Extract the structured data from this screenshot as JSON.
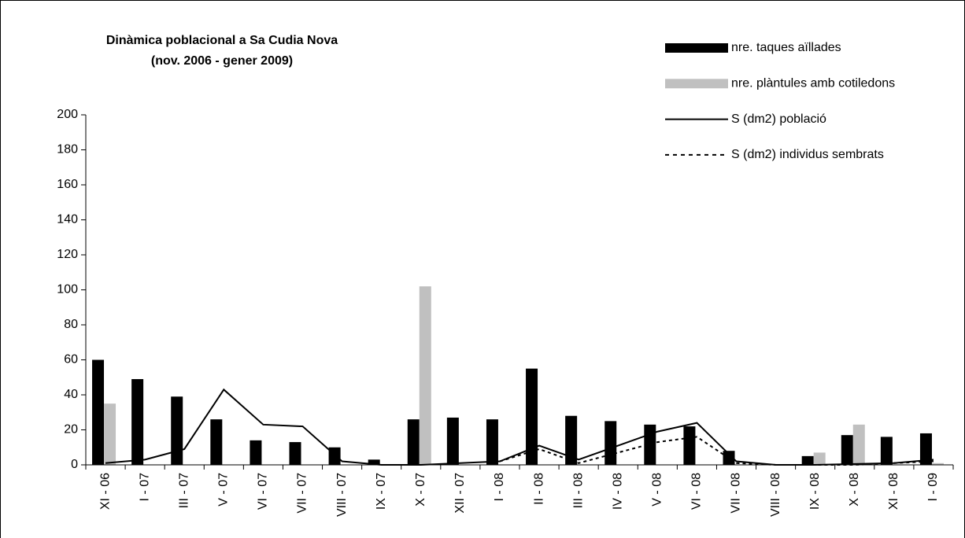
{
  "chart_data": {
    "type": "bar",
    "title": "Dinàmica poblacional a Sa Cudia Nova",
    "subtitle": "(nov. 2006 - gener 2009)",
    "categories": [
      "XI - 06",
      "I - 07",
      "III - 07",
      "V - 07",
      "VI - 07",
      "VII - 07",
      "VIII - 07",
      "IX - 07",
      "X - 07",
      "XII - 07",
      "I - 08",
      "II - 08",
      "III - 08",
      "IV - 08",
      "V - 08",
      "VI - 08",
      "VII - 08",
      "VIII - 08",
      "IX - 08",
      "X - 08",
      "XI - 08",
      "I - 09"
    ],
    "series": [
      {
        "name": "nre. taques aïllades",
        "type": "bar",
        "color": "#000000",
        "values": [
          60,
          49,
          39,
          26,
          14,
          13,
          10,
          3,
          26,
          27,
          26,
          55,
          28,
          25,
          23,
          22,
          8,
          0,
          5,
          17,
          16,
          18
        ]
      },
      {
        "name": "nre. plàntules amb cotiledons",
        "type": "bar",
        "color": "#c0c0c0",
        "values": [
          35,
          0,
          0,
          0,
          0,
          0,
          0,
          0,
          102,
          0,
          0,
          0,
          0,
          0,
          0,
          0,
          0,
          0,
          7,
          23,
          0,
          1
        ]
      },
      {
        "name": "S (dm2) població",
        "type": "line",
        "dashed": false,
        "color": "#000000",
        "values": [
          1,
          3,
          9,
          43,
          23,
          22,
          2,
          0,
          0,
          1,
          2,
          11,
          3,
          11,
          19,
          24,
          2,
          0,
          0,
          0.5,
          1,
          3
        ]
      },
      {
        "name": "S (dm2) individus sembrats",
        "type": "line",
        "dashed": true,
        "color": "#000000",
        "values": [
          null,
          null,
          null,
          null,
          null,
          null,
          null,
          null,
          null,
          null,
          2,
          9,
          1,
          7,
          13,
          16,
          1,
          0,
          0,
          0,
          1,
          2
        ]
      }
    ],
    "ylim": [
      0,
      200
    ],
    "yticks": [
      0,
      20,
      40,
      60,
      80,
      100,
      120,
      140,
      160,
      180,
      200
    ],
    "grid": false
  }
}
